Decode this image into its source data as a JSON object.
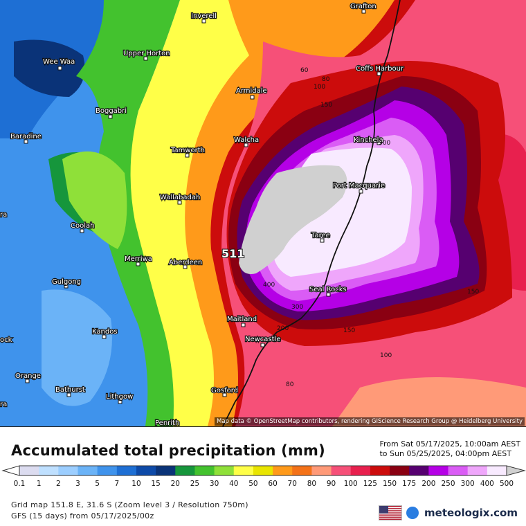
{
  "map": {
    "max_value_label": "511",
    "attribution": "Map data © OpenStreetMap contributors, rendering GIScience Research Group @ Heidelberg University",
    "towns": [
      {
        "name": "Grafton"
      },
      {
        "name": "Inverell"
      },
      {
        "name": "Wee Waa"
      },
      {
        "name": "Upper Horton"
      },
      {
        "name": "Coffs Harbour"
      },
      {
        "name": "Armidale"
      },
      {
        "name": "Boggabri"
      },
      {
        "name": "Baradine"
      },
      {
        "name": "Walcha"
      },
      {
        "name": "Kinchela"
      },
      {
        "name": "Tamworth"
      },
      {
        "name": "Port Macquarie"
      },
      {
        "name": "Wallabadah"
      },
      {
        "name": "Coolah"
      },
      {
        "name": "Taree"
      },
      {
        "name": "Merriwa"
      },
      {
        "name": "Aberdeen"
      },
      {
        "name": "Gulgong"
      },
      {
        "name": "Seal Rocks"
      },
      {
        "name": "Maitland"
      },
      {
        "name": "Kandos"
      },
      {
        "name": "Newcastle"
      },
      {
        "name": "Orange"
      },
      {
        "name": "Bathurst"
      },
      {
        "name": "Lithgow"
      },
      {
        "name": "Gosford"
      },
      {
        "name": "Penrith"
      },
      {
        "name": "ra"
      },
      {
        "name": "ock"
      },
      {
        "name": "ra"
      }
    ],
    "contour_labels": [
      "60",
      "80",
      "100",
      "150",
      "300",
      "150",
      "400",
      "300",
      "200",
      "150",
      "100",
      "80",
      "150"
    ]
  },
  "legend": {
    "title": "Accumulated total precipitation (mm)",
    "period_from": "From Sat 05/17/2025, 10:00am AEST",
    "period_to": "to Sun 05/25/2025, 04:00pm AEST",
    "ticks": [
      "0.1",
      "1",
      "2",
      "3",
      "5",
      "7",
      "10",
      "15",
      "20",
      "25",
      "30",
      "40",
      "50",
      "60",
      "70",
      "80",
      "90",
      "100",
      "125",
      "150",
      "175",
      "200",
      "250",
      "300",
      "400",
      "500"
    ],
    "colors": [
      "#dcdcf0",
      "#bfe0ff",
      "#9cceff",
      "#6bb3f7",
      "#3f93ec",
      "#1e6fd4",
      "#0d4aa8",
      "#0a3378",
      "#16963c",
      "#43c22e",
      "#8fe039",
      "#ffff48",
      "#e9e500",
      "#ff9a1a",
      "#f47218",
      "#ff9a78",
      "#f65078",
      "#e8204e",
      "#cc0c0c",
      "#8a0012",
      "#560070",
      "#b500e6",
      "#da5cf5",
      "#efa6fb",
      "#f8eaff",
      "#d0d0d0"
    ],
    "grid_info": "Grid map 151.8 E, 31.6 S (Zoom level 3 / Resolution 750m)",
    "model_info": "GFS (15 days) from 05/17/2025/00z",
    "brand": "meteologix.com"
  }
}
